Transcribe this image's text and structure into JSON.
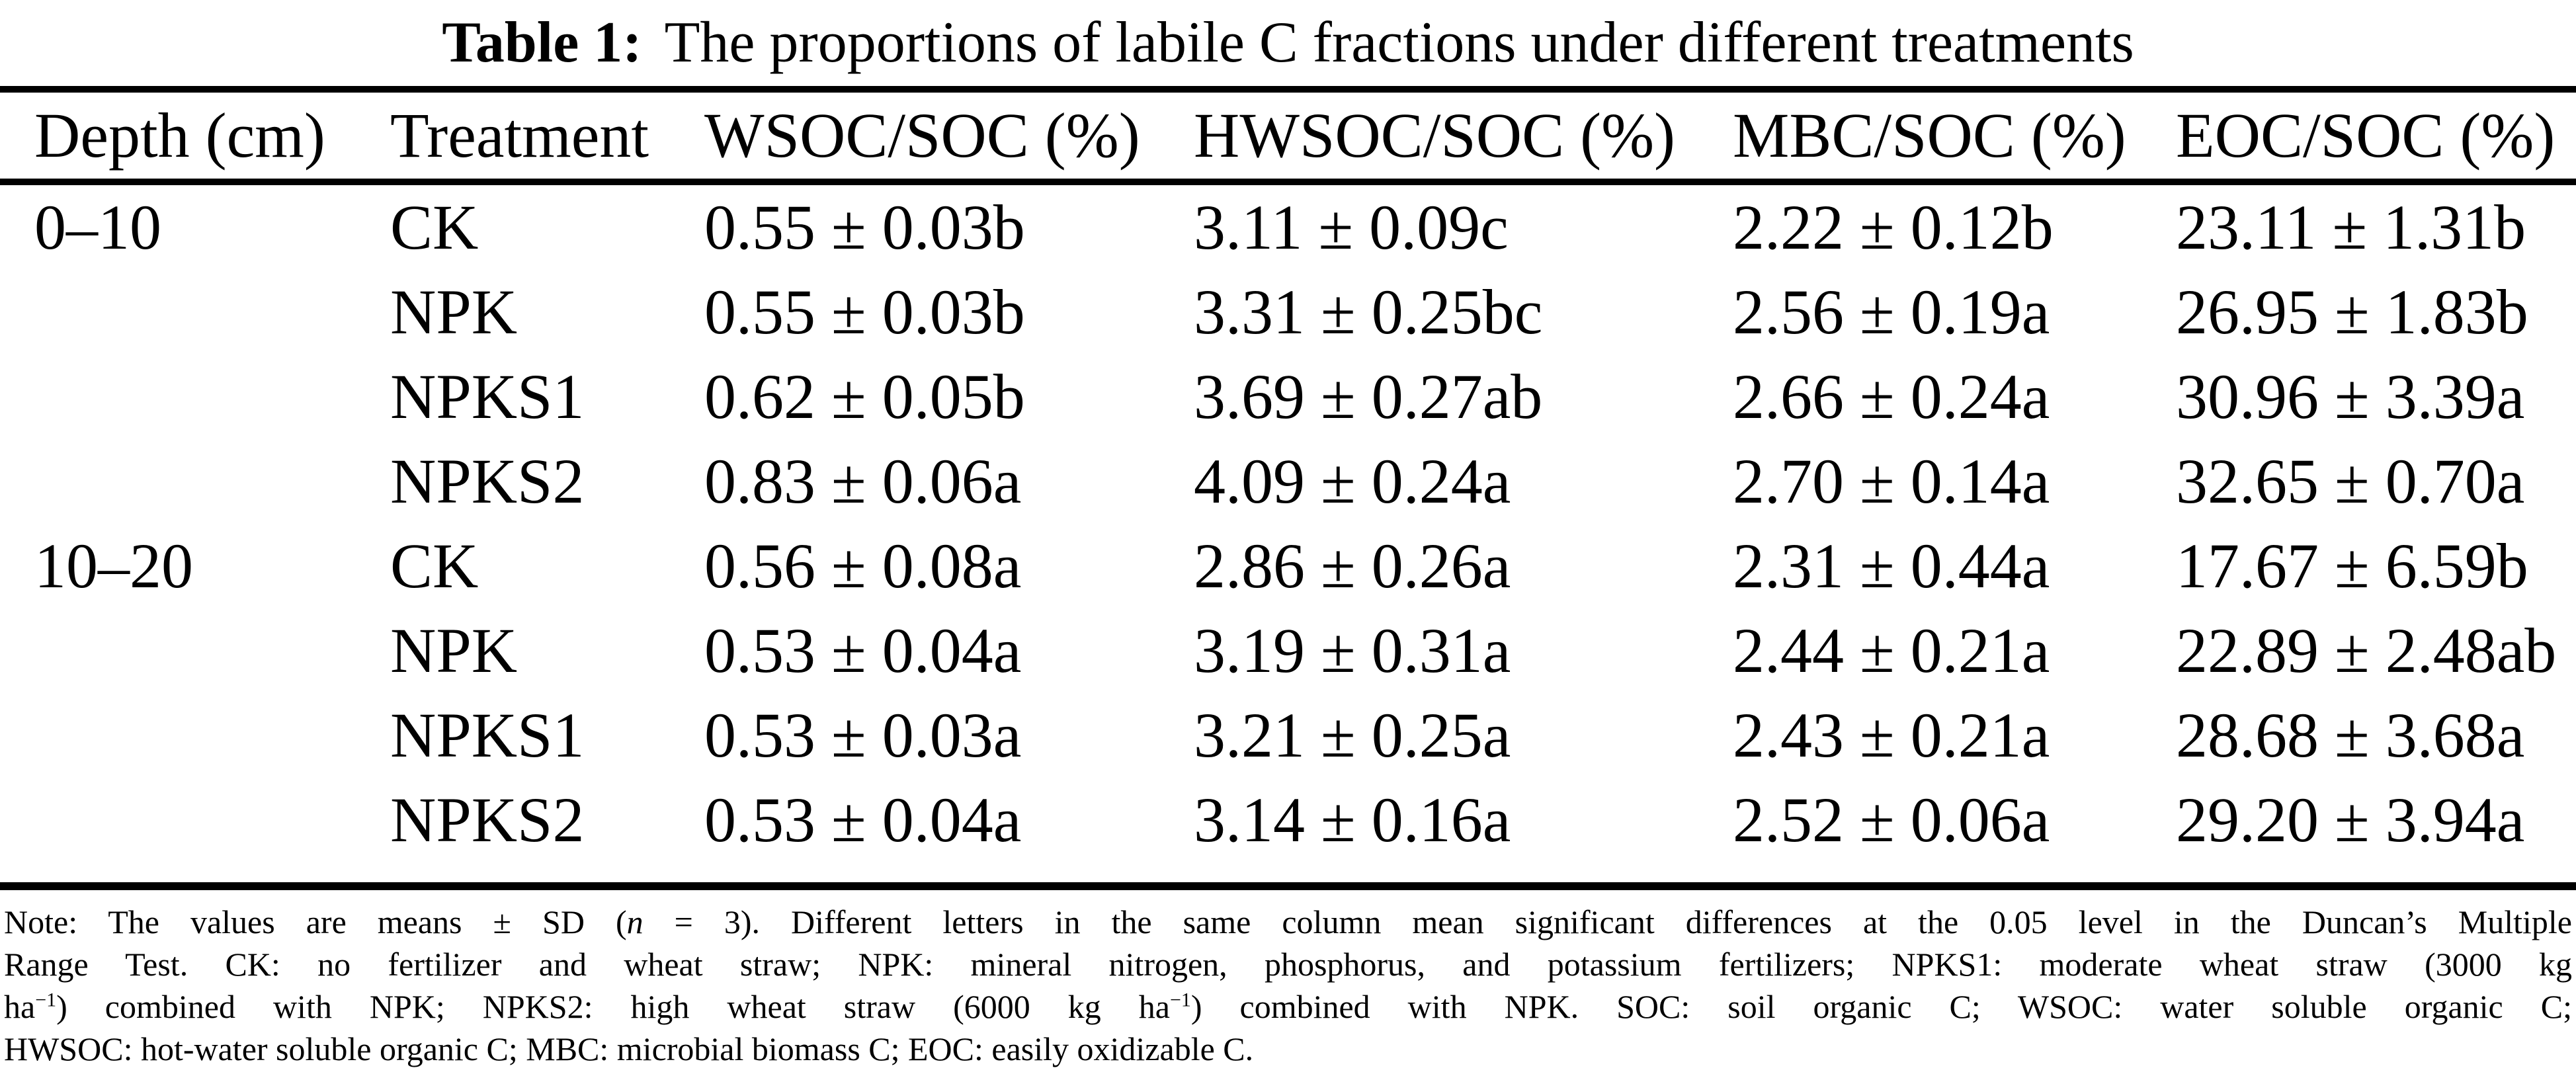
{
  "title": {
    "label": "Table 1:",
    "text": "The proportions of labile C fractions under different treatments"
  },
  "table": {
    "headers": [
      "Depth (cm)",
      "Treatment",
      "WSOC/SOC (%)",
      "HWSOC/SOC (%)",
      "MBC/SOC (%)",
      "EOC/SOC (%)"
    ],
    "rows": [
      {
        "depth": "0–10",
        "treatment": "CK",
        "wsoc": "0.55 ± 0.03b",
        "hwsoc": "3.11 ± 0.09c",
        "mbc": "2.22 ± 0.12b",
        "eoc": "23.11 ± 1.31b"
      },
      {
        "depth": "",
        "treatment": "NPK",
        "wsoc": "0.55 ± 0.03b",
        "hwsoc": "3.31 ± 0.25bc",
        "mbc": "2.56 ± 0.19a",
        "eoc": "26.95 ± 1.83b"
      },
      {
        "depth": "",
        "treatment": "NPKS1",
        "wsoc": "0.62 ± 0.05b",
        "hwsoc": "3.69 ± 0.27ab",
        "mbc": "2.66 ± 0.24a",
        "eoc": "30.96 ± 3.39a"
      },
      {
        "depth": "",
        "treatment": "NPKS2",
        "wsoc": "0.83 ± 0.06a",
        "hwsoc": "4.09 ± 0.24a",
        "mbc": "2.70 ± 0.14a",
        "eoc": "32.65 ± 0.70a"
      },
      {
        "depth": "10–20",
        "treatment": "CK",
        "wsoc": "0.56 ± 0.08a",
        "hwsoc": "2.86 ± 0.26a",
        "mbc": "2.31 ± 0.44a",
        "eoc": "17.67 ± 6.59b"
      },
      {
        "depth": "",
        "treatment": "NPK",
        "wsoc": "0.53 ± 0.04a",
        "hwsoc": "3.19 ± 0.31a",
        "mbc": "2.44 ± 0.21a",
        "eoc": "22.89 ± 2.48ab"
      },
      {
        "depth": "",
        "treatment": "NPKS1",
        "wsoc": "0.53 ± 0.03a",
        "hwsoc": "3.21 ± 0.25a",
        "mbc": "2.43 ± 0.21a",
        "eoc": "28.68 ± 3.68a"
      },
      {
        "depth": "",
        "treatment": "NPKS2",
        "wsoc": "0.53 ± 0.04a",
        "hwsoc": "3.14 ± 0.16a",
        "mbc": "2.52 ± 0.06a",
        "eoc": "29.20 ± 3.94a"
      }
    ]
  },
  "note": {
    "line1": {
      "s0": "Note: The values are means ± SD (",
      "s1": "n",
      "s2": " = 3). Different letters in the same column mean significant differences at the 0.05 level in the Duncan’s Multiple"
    },
    "line2": "Range Test. CK: no fertilizer and wheat straw; NPK: mineral nitrogen, phosphorus, and potassium fertilizers; NPKS1: moderate wheat straw (3000 kg",
    "line3": {
      "s0": "ha",
      "s1": "−1",
      "s2": ") combined with NPK; NPKS2: high wheat straw (6000 kg ha",
      "s3": "−1",
      "s4": ") combined with NPK. SOC: soil organic C; WSOC: water soluble organic C;"
    },
    "line4": "HWSOC: hot-water soluble organic C; MBC: microbial biomass C; EOC: easily oxidizable C."
  },
  "colors": {
    "text": "#000000",
    "background": "#ffffff",
    "rule": "#000000"
  }
}
